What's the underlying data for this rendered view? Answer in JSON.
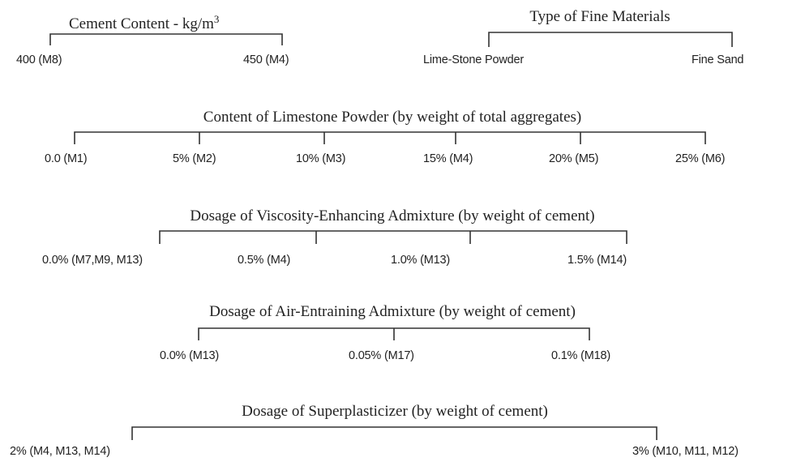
{
  "groups": [
    {
      "title": "Cement Content - kg/m",
      "title_superscript": "3",
      "labels": [
        "400 (M8)",
        "450 (M4)"
      ]
    },
    {
      "title": "Type of Fine Materials",
      "labels": [
        "Lime-Stone Powder",
        "Fine Sand"
      ]
    },
    {
      "title": "Content of Limestone Powder (by weight of total aggregates)",
      "labels": [
        "0.0 (M1)",
        "5% (M2)",
        "10% (M3)",
        "15% (M4)",
        "20% (M5)",
        "25% (M6)"
      ]
    },
    {
      "title": "Dosage of Viscosity-Enhancing Admixture (by weight of cement)",
      "labels": [
        "0.0% (M7,M9, M13)",
        "0.5% (M4)",
        "1.0% (M13)",
        "1.5% (M14)"
      ]
    },
    {
      "title": "Dosage of Air-Entraining Admixture (by weight of cement)",
      "labels": [
        "0.0% (M13)",
        "0.05% (M17)",
        "0.1% (M18)"
      ]
    },
    {
      "title": "Dosage of Superplasticizer (by weight of cement)",
      "labels": [
        "2% (M4, M13, M14)",
        "3% (M10, M11, M12)"
      ]
    }
  ]
}
